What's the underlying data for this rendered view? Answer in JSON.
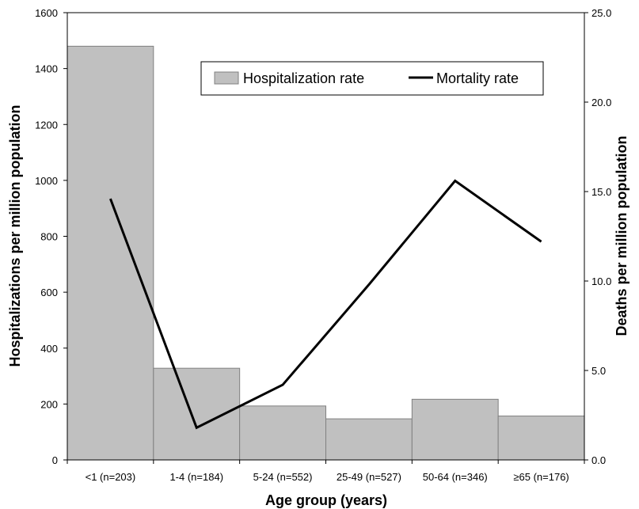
{
  "chart_data": {
    "type": "bar",
    "categories": [
      "<1 (n=203)",
      "1-4 (n=184)",
      "5-24 (n=552)",
      "25-49 (n=527)",
      "50-64 (n=346)",
      "≥65 (n=176)"
    ],
    "series": [
      {
        "name": "Hospitalization rate",
        "type": "bar",
        "axis": "left",
        "values": [
          1480,
          328,
          193,
          147,
          217,
          157
        ]
      },
      {
        "name": "Mortality rate",
        "type": "line",
        "axis": "right",
        "values": [
          14.6,
          1.8,
          4.2,
          9.8,
          15.6,
          12.2
        ]
      }
    ],
    "xlabel": "Age group (years)",
    "ylabel": "Hospitalizations per million population",
    "y2label": "Deaths per million population",
    "ylim": [
      0,
      1600
    ],
    "y2lim": [
      0,
      25
    ],
    "yticks": [
      "0",
      "200",
      "400",
      "600",
      "800",
      "1000",
      "1200",
      "1400",
      "1600"
    ],
    "y2ticks": [
      "0.0",
      "5.0",
      "10.0",
      "15.0",
      "20.0",
      "25.0"
    ],
    "legend": {
      "position": "top-right",
      "entries": [
        "Hospitalization rate",
        "Mortality rate"
      ]
    },
    "colors": {
      "bar_fill": "#c0c0c0",
      "bar_stroke": "#808080",
      "line": "#000000",
      "axis": "#000000"
    },
    "grid": false
  }
}
